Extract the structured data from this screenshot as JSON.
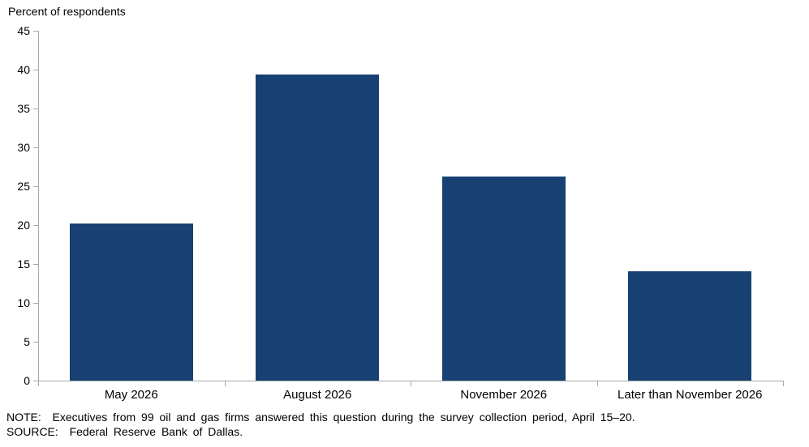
{
  "chart_data": {
    "type": "bar",
    "title": "Percent of respondents",
    "categories": [
      "May 2026",
      "August 2026",
      "November 2026",
      "Later than November 2026"
    ],
    "values": [
      20.2,
      39.4,
      26.3,
      14.1
    ],
    "ylabel": "Percent of respondents",
    "xlabel": "",
    "ylim": [
      0,
      45
    ],
    "ytick_step": 5,
    "grid": false,
    "legend": false,
    "bar_color": "#184173",
    "axis_color": "#a6a6a6"
  },
  "footnotes": {
    "note": "NOTE:  Executives from 99 oil and gas firms answered this question during the survey collection period, April 15–20.",
    "source": "SOURCE:  Federal Reserve Bank of Dallas."
  }
}
